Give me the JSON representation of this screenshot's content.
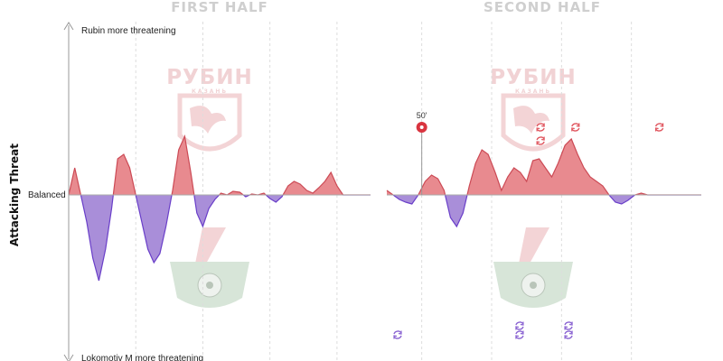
{
  "chart_data": {
    "type": "area",
    "halves": [
      {
        "title": "FIRST HALF",
        "x_range": [
          0,
          45
        ],
        "x": [
          0,
          0.9,
          1.8,
          2.7,
          3.6,
          4.5,
          5.5,
          6.4,
          7.3,
          8.2,
          9.1,
          10,
          10.9,
          11.8,
          12.7,
          13.6,
          14.5,
          15.5,
          16.4,
          17.3,
          18.2,
          19.1,
          20,
          20.9,
          21.8,
          22.7,
          23.6,
          24.5,
          25.5,
          26.4,
          27.3,
          28.2,
          29.1,
          30,
          30.9,
          31.8,
          32.7,
          33.6,
          34.5,
          35.5,
          36.4,
          37.3,
          38.2,
          39.1,
          40,
          40.9,
          41.8,
          42.7,
          43.6,
          44.5,
          45
        ],
        "values": [
          0,
          0.3,
          0,
          -0.3,
          -0.7,
          -0.95,
          -0.6,
          -0.15,
          0.4,
          0.45,
          0.3,
          0,
          -0.3,
          -0.6,
          -0.75,
          -0.65,
          -0.35,
          0.05,
          0.5,
          0.65,
          0.25,
          -0.2,
          -0.35,
          -0.15,
          -0.05,
          0.02,
          0,
          0.04,
          0.03,
          -0.02,
          0.01,
          0,
          0.02,
          -0.04,
          -0.08,
          -0.02,
          0.1,
          0.15,
          0.12,
          0.05,
          0.02,
          0.08,
          0.15,
          0.25,
          0.1,
          0,
          0,
          0,
          0,
          0,
          0
        ]
      },
      {
        "title": "SECOND HALF",
        "x_range": [
          45,
          90
        ],
        "x": [
          45,
          45.9,
          46.8,
          47.7,
          48.6,
          49.5,
          50.5,
          51.4,
          52.3,
          53.2,
          54.1,
          55,
          55.9,
          56.8,
          57.7,
          58.6,
          59.5,
          60.5,
          61.4,
          62.3,
          63.2,
          64.1,
          65,
          65.9,
          66.8,
          67.7,
          68.6,
          69.5,
          70.5,
          71.4,
          72.3,
          73.2,
          74.1,
          75,
          75.9,
          76.8,
          77.7,
          78.6,
          79.5,
          80.5,
          81.4,
          82.3,
          83.2,
          84.1,
          85,
          85.9,
          86.8,
          87.7,
          88.6,
          89.5,
          90
        ],
        "values": [
          0.05,
          0,
          -0.05,
          -0.08,
          -0.1,
          0,
          0.15,
          0.22,
          0.18,
          0.05,
          -0.25,
          -0.35,
          -0.2,
          0.1,
          0.35,
          0.5,
          0.45,
          0.25,
          0.05,
          0.2,
          0.3,
          0.25,
          0.15,
          0.38,
          0.4,
          0.3,
          0.2,
          0.35,
          0.55,
          0.62,
          0.45,
          0.3,
          0.2,
          0.15,
          0.1,
          0,
          -0.08,
          -0.1,
          -0.06,
          0,
          0.02,
          0,
          0,
          0,
          0,
          0,
          0,
          0,
          0,
          0,
          0
        ]
      }
    ],
    "y_range": [
      -1,
      1
    ],
    "y_top_label": "Rubin more threatening",
    "y_center_label": "Balanced",
    "y_bottom_label": "Lokomotiv M more threatening",
    "ylabel": "Attacking Threat",
    "goals": [
      {
        "minute": 50,
        "label": "50'",
        "team": "Rubin",
        "level": 0.75
      }
    ],
    "substitutions": {
      "Rubin": [
        {
          "minute": 67,
          "level": 0.75
        },
        {
          "minute": 67,
          "level": 0.6
        },
        {
          "minute": 72,
          "level": 0.75
        },
        {
          "minute": 84,
          "level": 0.75
        }
      ],
      "Lokomotiv M": [
        {
          "minute": 0,
          "level": -0.75
        },
        {
          "minute": 64,
          "level": -0.65
        },
        {
          "minute": 64,
          "level": -0.75
        },
        {
          "minute": 71,
          "level": -0.65
        },
        {
          "minute": 71,
          "level": -0.75
        }
      ]
    },
    "grid_lines": "vertical dashed every 10 minutes",
    "colors": {
      "positive": "#e88a8f",
      "positive_line": "#cc4a55",
      "negative": "#a98ed9",
      "negative_line": "#6a3fc9",
      "axis": "#999999",
      "grid": "#dddddd",
      "watermark_red": "#f3d4d6",
      "watermark_green": "#d7e5d8"
    },
    "watermarks": {
      "home": "РУБИН",
      "home_sub": "КАЗАНЬ",
      "away": "Lokomotiv logo"
    }
  }
}
